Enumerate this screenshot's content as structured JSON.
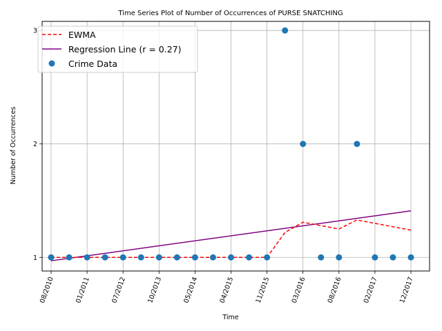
{
  "chart_data": {
    "type": "line",
    "title": "Time Series Plot of Number of Occurrences of PURSE SNATCHING",
    "xlabel": "Time",
    "ylabel": "Number of Occurrences",
    "x_tick_labels": [
      "08/2010",
      "01/2011",
      "07/2012",
      "10/2013",
      "05/2014",
      "04/2015",
      "11/2015",
      "03/2016",
      "08/2016",
      "02/2017",
      "12/2017"
    ],
    "y_ticks": [
      1,
      2,
      3
    ],
    "ylim": [
      0.88,
      3.08
    ],
    "grid": true,
    "legend_position": "top-left",
    "series": [
      {
        "name": "Crime Data",
        "kind": "scatter",
        "color": "#1f77b4",
        "values": [
          1,
          1,
          1,
          1,
          1,
          1,
          1,
          1,
          1,
          1,
          1,
          1,
          1,
          3,
          2,
          1,
          1,
          2,
          1,
          1,
          1
        ]
      },
      {
        "name": "EWMA",
        "kind": "line",
        "style": "dashed",
        "color": "#ff0000",
        "values": [
          1,
          1,
          1,
          1,
          1,
          1,
          1,
          1,
          1,
          1,
          1,
          1,
          1,
          1.22,
          1.31,
          1.28,
          1.25,
          1.33,
          1.3,
          1.27,
          1.24
        ]
      },
      {
        "name": "Regression Line (r = 0.27)",
        "kind": "line",
        "style": "solid",
        "color": "#800080",
        "start": 0.97,
        "end": 1.41
      }
    ]
  }
}
